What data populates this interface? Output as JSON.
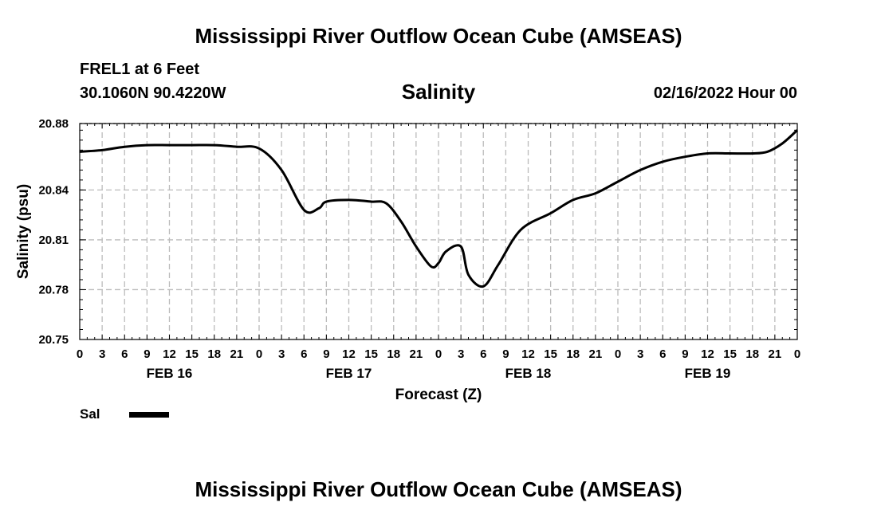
{
  "page": {
    "main_title": "Mississippi River Outflow Ocean Cube (AMSEAS)",
    "bottom_title": "Mississippi River Outflow Ocean Cube (AMSEAS)",
    "station": "FREL1 at 6 Feet",
    "coords": "30.1060N  90.4220W",
    "subtitle": "Salinity",
    "datetime": "02/16/2022 Hour 00"
  },
  "colors": {
    "line": "#000000",
    "grid": "#bbbbbb",
    "background": "#ffffff"
  },
  "chart_data": {
    "type": "line",
    "title": "Salinity",
    "xlabel": "Forecast (Z)",
    "ylabel": "Salinity (psu)",
    "ylim": [
      20.75,
      20.88
    ],
    "yticks": [
      "20.75",
      "20.78",
      "20.81",
      "20.84",
      "20.88"
    ],
    "ytick_values": [
      20.75,
      20.78,
      20.81,
      20.84,
      20.88
    ],
    "xlim": [
      0,
      96
    ],
    "xtick_labels": [
      "0",
      "3",
      "6",
      "9",
      "12",
      "15",
      "18",
      "21",
      "0",
      "3",
      "6",
      "9",
      "12",
      "15",
      "18",
      "21",
      "0",
      "3",
      "6",
      "9",
      "12",
      "15",
      "18",
      "21",
      "0",
      "3",
      "6",
      "9",
      "12",
      "15",
      "18",
      "21",
      "0"
    ],
    "day_labels": [
      {
        "label": "FEB 16",
        "x": 12
      },
      {
        "label": "FEB 17",
        "x": 36
      },
      {
        "label": "FEB 18",
        "x": 60
      },
      {
        "label": "FEB 19",
        "x": 84
      }
    ],
    "grid": true,
    "legend": "bottom-left",
    "series": [
      {
        "name": "Sal",
        "x": [
          0,
          3,
          6,
          9,
          12,
          15,
          18,
          21,
          24,
          27,
          30,
          32,
          33,
          36,
          39,
          41,
          43,
          45,
          47,
          48,
          49,
          51,
          52,
          54,
          56,
          59,
          63,
          66,
          69,
          72,
          75,
          78,
          81,
          84,
          87,
          90,
          92,
          94,
          96
        ],
        "y": [
          20.863,
          20.864,
          20.866,
          20.867,
          20.867,
          20.867,
          20.867,
          20.866,
          20.865,
          20.852,
          20.828,
          20.829,
          20.833,
          20.834,
          20.833,
          20.832,
          20.821,
          20.806,
          20.794,
          20.796,
          20.803,
          20.806,
          20.789,
          20.782,
          20.795,
          20.816,
          20.826,
          20.834,
          20.838,
          20.845,
          20.852,
          20.857,
          20.86,
          20.862,
          20.862,
          20.862,
          20.863,
          20.868,
          20.876
        ]
      }
    ]
  },
  "legend": {
    "label": "Sal"
  }
}
